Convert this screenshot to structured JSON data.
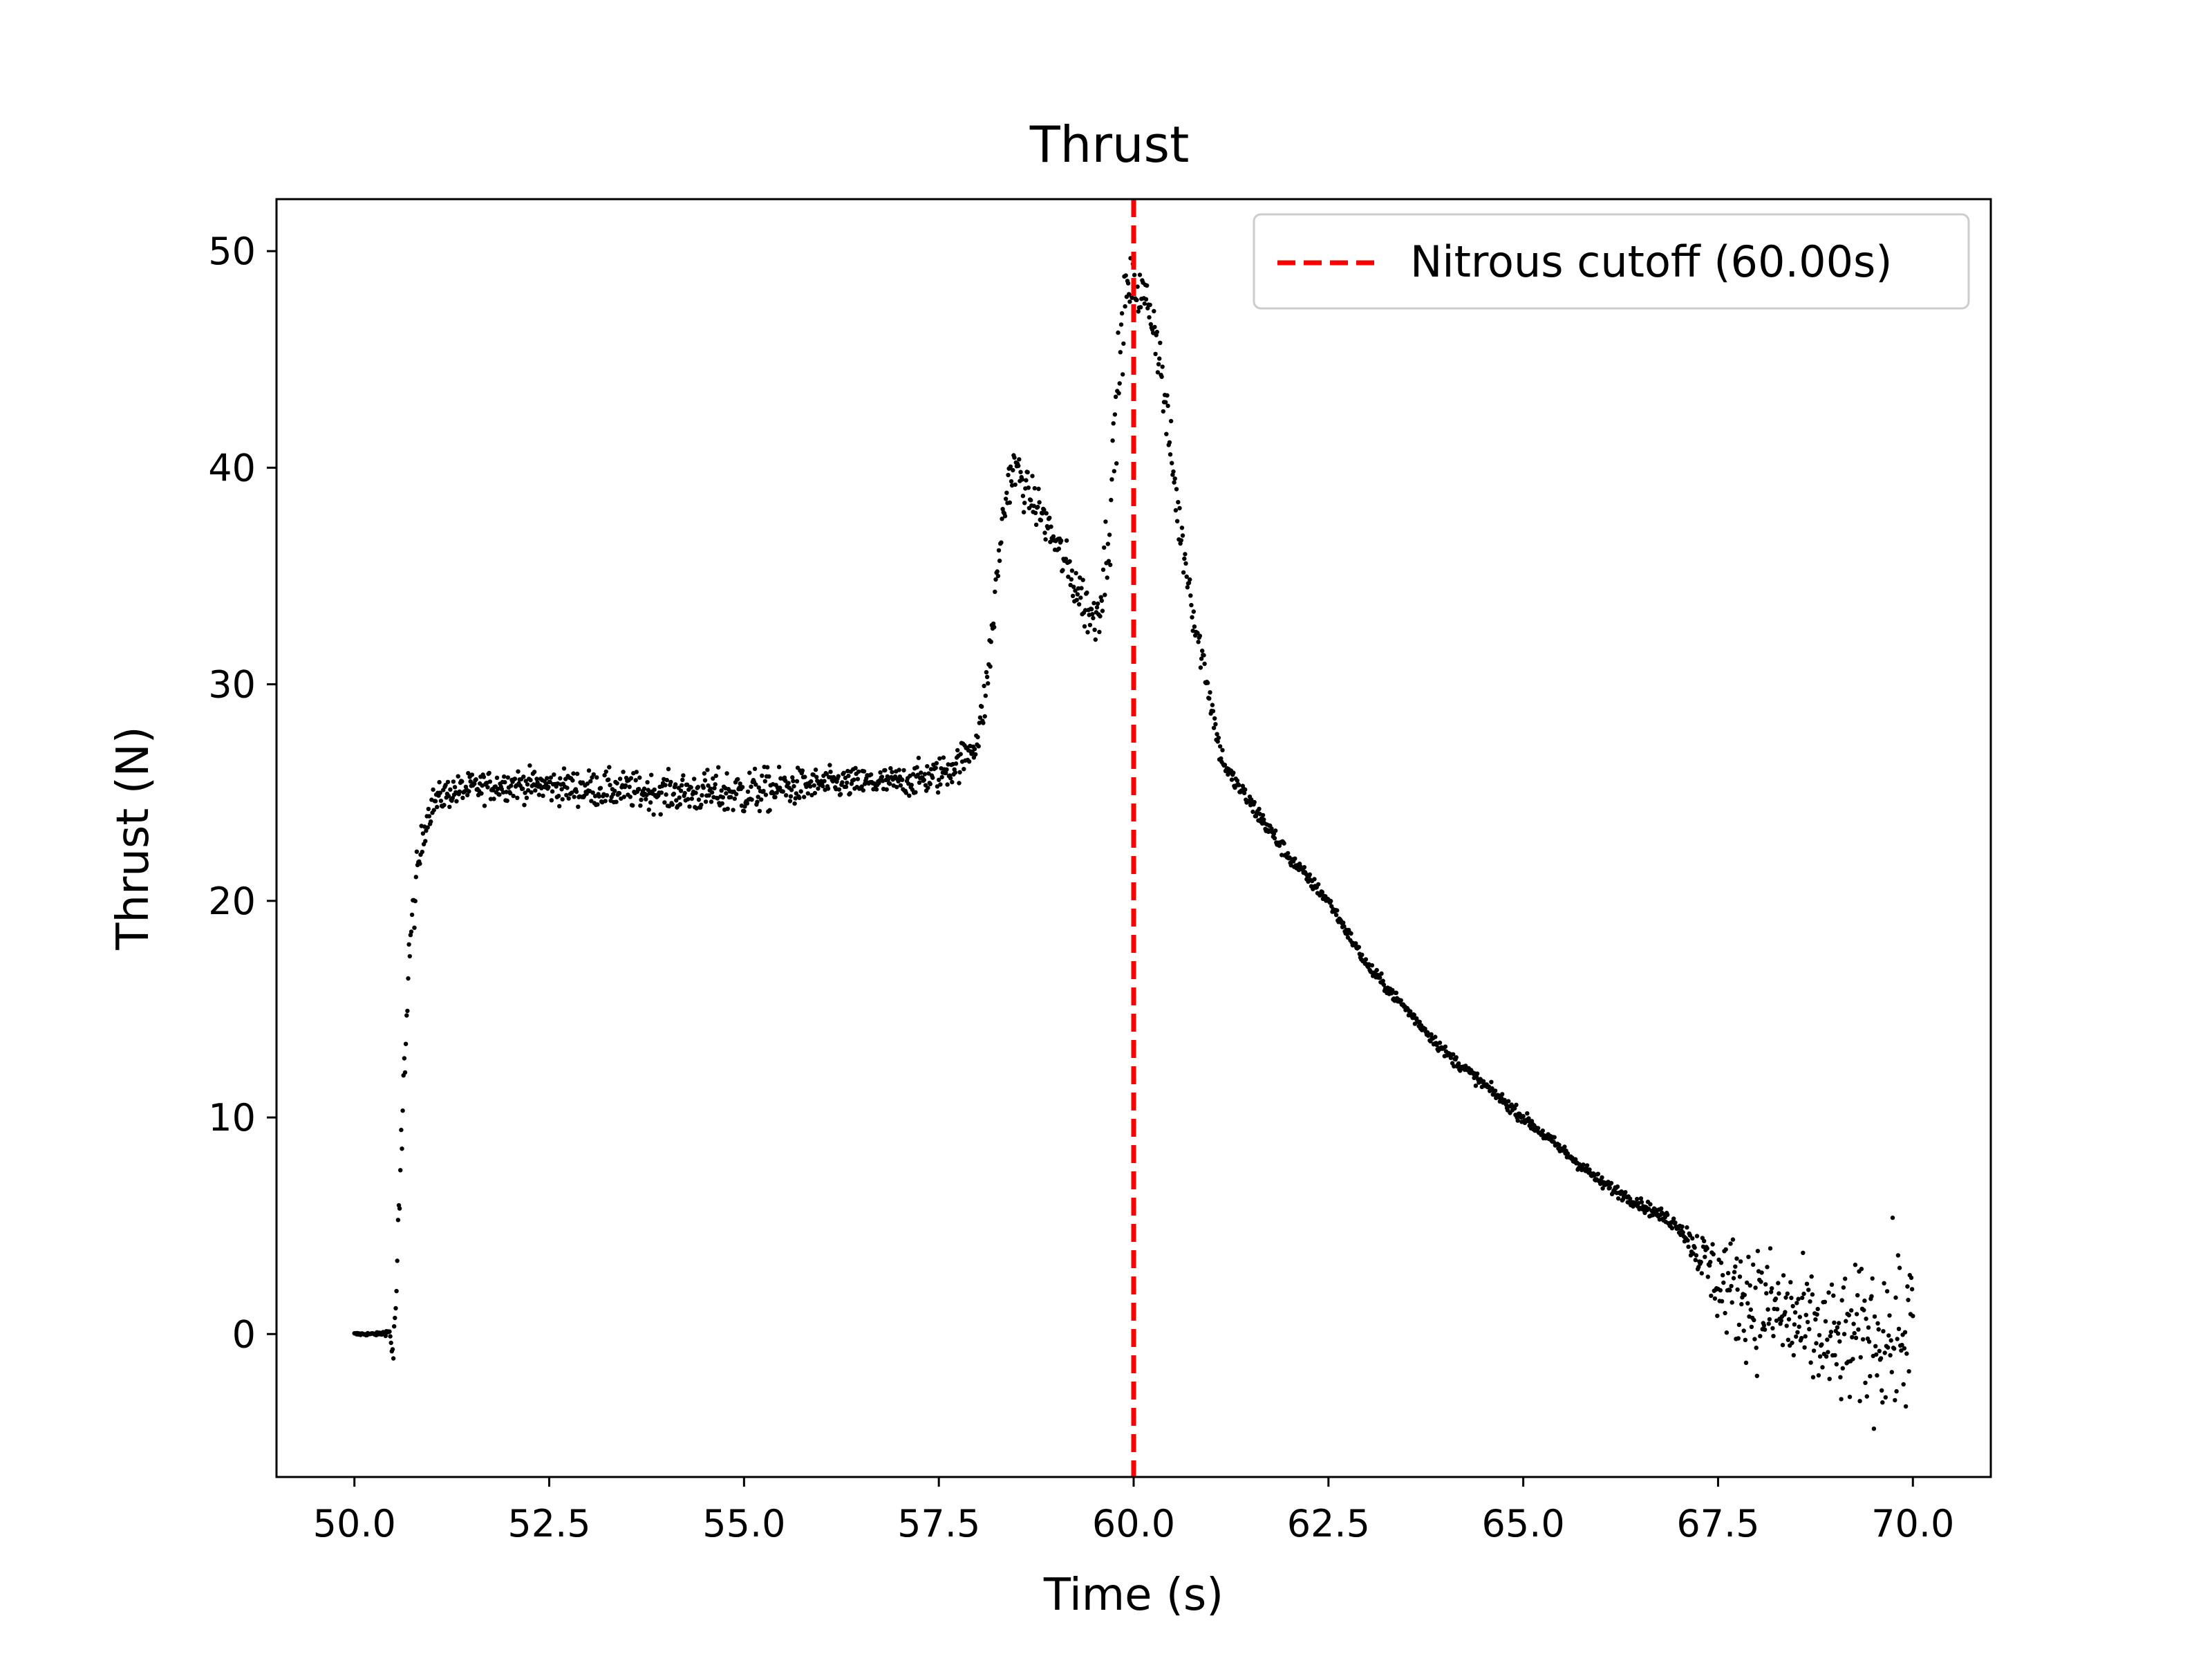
{
  "chart_data": {
    "type": "scatter",
    "title": "Thrust",
    "xlabel": "Time (s)",
    "ylabel": "Thrust (N)",
    "xlim": [
      49.0,
      71.0
    ],
    "ylim": [
      -6.6,
      52.4
    ],
    "xticks": [
      50.0,
      52.5,
      55.0,
      57.5,
      60.0,
      62.5,
      65.0,
      67.5,
      70.0
    ],
    "xtick_labels": [
      "50.0",
      "52.5",
      "55.0",
      "57.5",
      "60.0",
      "62.5",
      "65.0",
      "67.5",
      "70.0"
    ],
    "yticks": [
      0,
      10,
      20,
      30,
      40,
      50
    ],
    "ytick_labels": [
      "0",
      "10",
      "20",
      "30",
      "40",
      "50"
    ],
    "grid": false,
    "marker_color": "#000000",
    "series": [
      {
        "name": "",
        "approx_profile": {
          "x": [
            50.0,
            50.3,
            50.45,
            50.5,
            50.55,
            50.6,
            50.65,
            50.7,
            50.8,
            50.9,
            51.0,
            51.2,
            51.5,
            52.0,
            53.0,
            54.0,
            55.0,
            56.0,
            57.0,
            57.5,
            57.8,
            58.0,
            58.1,
            58.2,
            58.3,
            58.4,
            58.5,
            58.6,
            58.8,
            59.0,
            59.2,
            59.4,
            59.5,
            59.6,
            59.7,
            59.8,
            59.9,
            60.0,
            60.1,
            60.2,
            60.3,
            60.4,
            60.5,
            60.6,
            60.7,
            60.8,
            60.9,
            61.0,
            61.1,
            61.2,
            61.5,
            61.8,
            62.0,
            62.5,
            63.0,
            63.5,
            64.0,
            64.5,
            65.0,
            65.5,
            66.0,
            66.5,
            67.0,
            67.2,
            67.5,
            68.0,
            68.5,
            69.0,
            69.5,
            70.0
          ],
          "y": [
            0.0,
            0.0,
            0.1,
            -1.0,
            3.0,
            8.0,
            13.0,
            17.5,
            21.0,
            23.5,
            24.5,
            25.0,
            25.2,
            25.4,
            25.2,
            25.0,
            25.0,
            25.4,
            25.5,
            25.8,
            26.5,
            27.5,
            29.5,
            33.0,
            37.0,
            39.5,
            40.0,
            39.0,
            38.0,
            36.5,
            35.0,
            33.5,
            33.0,
            34.5,
            38.0,
            44.0,
            48.0,
            48.5,
            48.0,
            47.5,
            46.0,
            43.0,
            40.0,
            37.0,
            35.0,
            32.5,
            31.0,
            29.0,
            27.0,
            26.0,
            24.5,
            23.0,
            22.0,
            20.0,
            17.0,
            15.0,
            13.0,
            11.5,
            10.0,
            8.5,
            7.0,
            6.0,
            5.0,
            4.0,
            2.5,
            1.5,
            0.5,
            -0.5,
            0.0,
            0.0
          ],
          "noise": [
            0.05,
            0.05,
            0.1,
            0.5,
            1.0,
            1.5,
            1.0,
            0.8,
            0.8,
            0.6,
            0.5,
            0.5,
            0.5,
            0.5,
            0.6,
            0.6,
            0.8,
            0.5,
            0.5,
            0.6,
            0.6,
            0.6,
            0.8,
            0.8,
            0.8,
            0.8,
            0.8,
            0.7,
            0.7,
            0.7,
            0.8,
            0.9,
            0.9,
            1.2,
            1.5,
            1.5,
            1.0,
            1.0,
            0.8,
            0.8,
            1.0,
            1.0,
            1.0,
            0.9,
            0.8,
            0.7,
            0.6,
            0.5,
            0.4,
            0.3,
            0.3,
            0.3,
            0.25,
            0.2,
            0.2,
            0.2,
            0.2,
            0.2,
            0.2,
            0.2,
            0.2,
            0.2,
            0.25,
            0.6,
            1.5,
            2.0,
            2.0,
            2.0,
            2.5,
            3.0
          ]
        }
      }
    ],
    "vline": {
      "x": 60.0,
      "color": "#ff0000",
      "style": "dashed",
      "label": "Nitrous cutoff (60.00s)"
    },
    "legend": {
      "position": "upper right",
      "entries": [
        "Nitrous cutoff (60.00s)"
      ]
    }
  }
}
